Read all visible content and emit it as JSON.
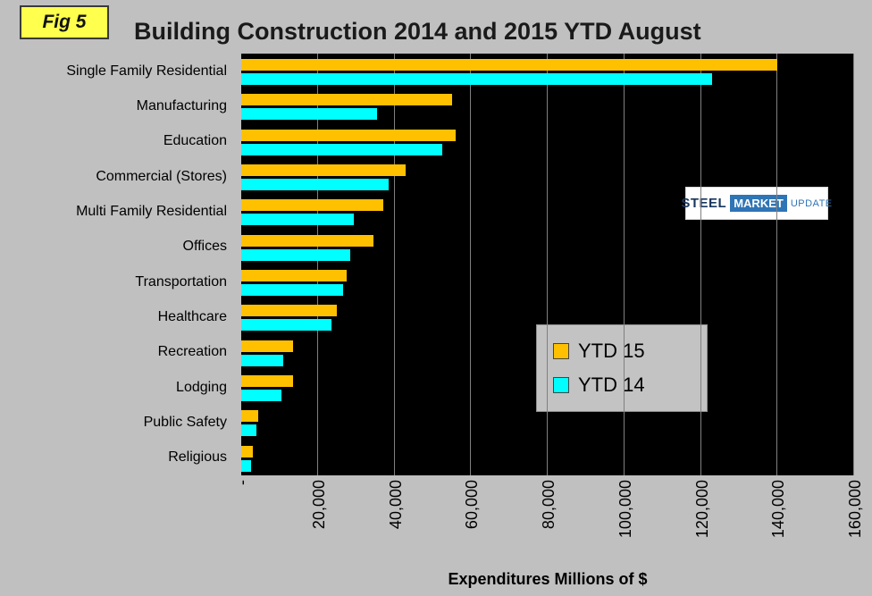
{
  "header": {
    "fig_label": "Fig 5",
    "title": "Building Construction 2014 and 2015  YTD August"
  },
  "logo": {
    "steel": "STEEL",
    "market": "MARKET",
    "update": "UPDATE"
  },
  "chart_data": {
    "type": "bar",
    "orientation": "horizontal",
    "title": "Building Construction 2014 and 2015  YTD August",
    "categories": [
      "Single Family Residential",
      "Manufacturing",
      "Education",
      "Commercial (Stores)",
      "Multi Family Residential",
      "Offices",
      "Transportation",
      "Healthcare",
      "Recreation",
      "Lodging",
      "Public Safety",
      "Religious"
    ],
    "series": [
      {
        "name": "YTD 15",
        "color": "#FFC000",
        "values": [
          140000,
          55000,
          56000,
          43000,
          37000,
          34500,
          27500,
          25000,
          13500,
          13500,
          4500,
          3000
        ]
      },
      {
        "name": "YTD 14",
        "color": "#00FFFF",
        "values": [
          123000,
          35500,
          52500,
          38500,
          29500,
          28500,
          26500,
          23500,
          11000,
          10500,
          4000,
          2500
        ]
      }
    ],
    "xlabel": "Expenditures Millions of $",
    "xlim": [
      0,
      160000
    ],
    "xticks": {
      "values": [
        0,
        20000,
        40000,
        60000,
        80000,
        100000,
        120000,
        140000,
        160000
      ],
      "labels": [
        "-",
        "20,000",
        "40,000",
        "60,000",
        "80,000",
        "100,000",
        "120,000",
        "140,000",
        "160,000"
      ]
    },
    "grid": true,
    "legend_position": "inside-right",
    "plot_bg": "#000000",
    "page_bg": "#C0C0C0"
  }
}
